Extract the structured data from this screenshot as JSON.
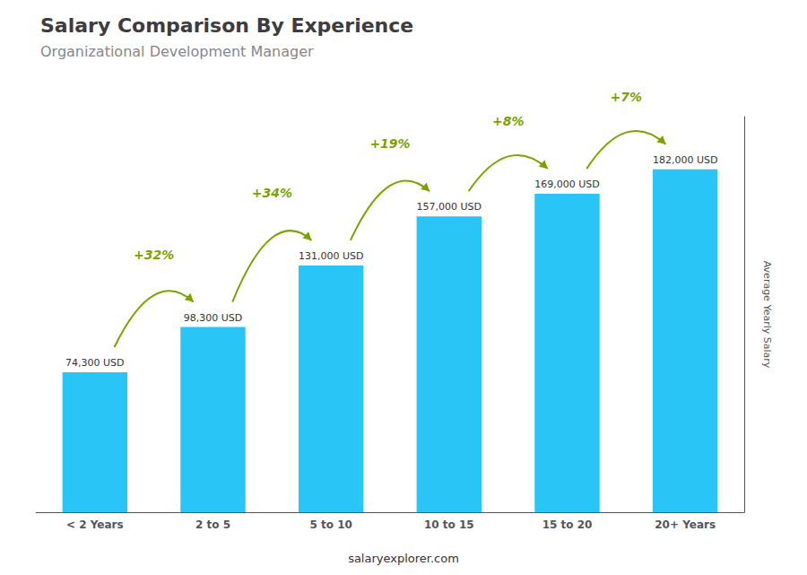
{
  "chart_data": {
    "type": "bar",
    "title": "Salary Comparison By Experience",
    "subtitle": "Organizational Development Manager",
    "categories": [
      "< 2 Years",
      "2 to 5",
      "5 to 10",
      "10 to 15",
      "15 to 20",
      "20+ Years"
    ],
    "values": [
      74300,
      98300,
      131000,
      157000,
      169000,
      182000
    ],
    "value_labels": [
      "74,300 USD",
      "98,300 USD",
      "131,000 USD",
      "157,000 USD",
      "169,000 USD",
      "182,000 USD"
    ],
    "data_labels": true,
    "color": "#29c5f6",
    "ylabel": "Average Yearly Salary",
    "ylim": [
      0,
      210000
    ],
    "tick_labels": "x",
    "grid": false,
    "annotations": [
      "+32%",
      "+34%",
      "+19%",
      "+8%",
      "+7%"
    ],
    "footer": "salaryexplorer.com"
  }
}
